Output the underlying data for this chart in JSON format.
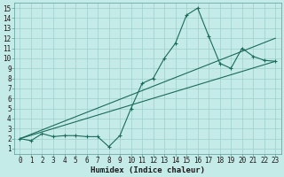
{
  "xlabel": "Humidex (Indice chaleur)",
  "bg_color": "#c5ebe8",
  "grid_color": "#9ecfcc",
  "line_color": "#1a6b5a",
  "spine_color": "#5a9a94",
  "xlim": [
    -0.5,
    23.5
  ],
  "ylim": [
    0.5,
    15.5
  ],
  "xticks": [
    0,
    1,
    2,
    3,
    4,
    5,
    6,
    7,
    8,
    9,
    10,
    11,
    12,
    13,
    14,
    15,
    16,
    17,
    18,
    19,
    20,
    21,
    22,
    23
  ],
  "yticks": [
    1,
    2,
    3,
    4,
    5,
    6,
    7,
    8,
    9,
    10,
    11,
    12,
    13,
    14,
    15
  ],
  "line1_x": [
    0,
    1,
    2,
    3,
    4,
    5,
    6,
    7,
    8,
    9,
    10,
    11,
    12,
    13,
    14,
    15,
    16,
    17,
    18,
    19,
    20,
    21,
    22,
    23
  ],
  "line1_y": [
    2.0,
    1.8,
    2.5,
    2.2,
    2.3,
    2.3,
    2.2,
    2.2,
    1.2,
    2.3,
    5.0,
    7.5,
    8.0,
    10.0,
    11.5,
    14.3,
    15.0,
    12.2,
    9.5,
    9.0,
    11.0,
    10.2,
    9.8,
    9.7
  ],
  "line2_x": [
    0,
    23
  ],
  "line2_y": [
    2.0,
    12.0
  ],
  "line3_x": [
    0,
    23
  ],
  "line3_y": [
    2.0,
    9.7
  ],
  "font_size_label": 6.5,
  "font_size_tick": 5.5,
  "marker_size": 3.5,
  "line_width": 0.8
}
